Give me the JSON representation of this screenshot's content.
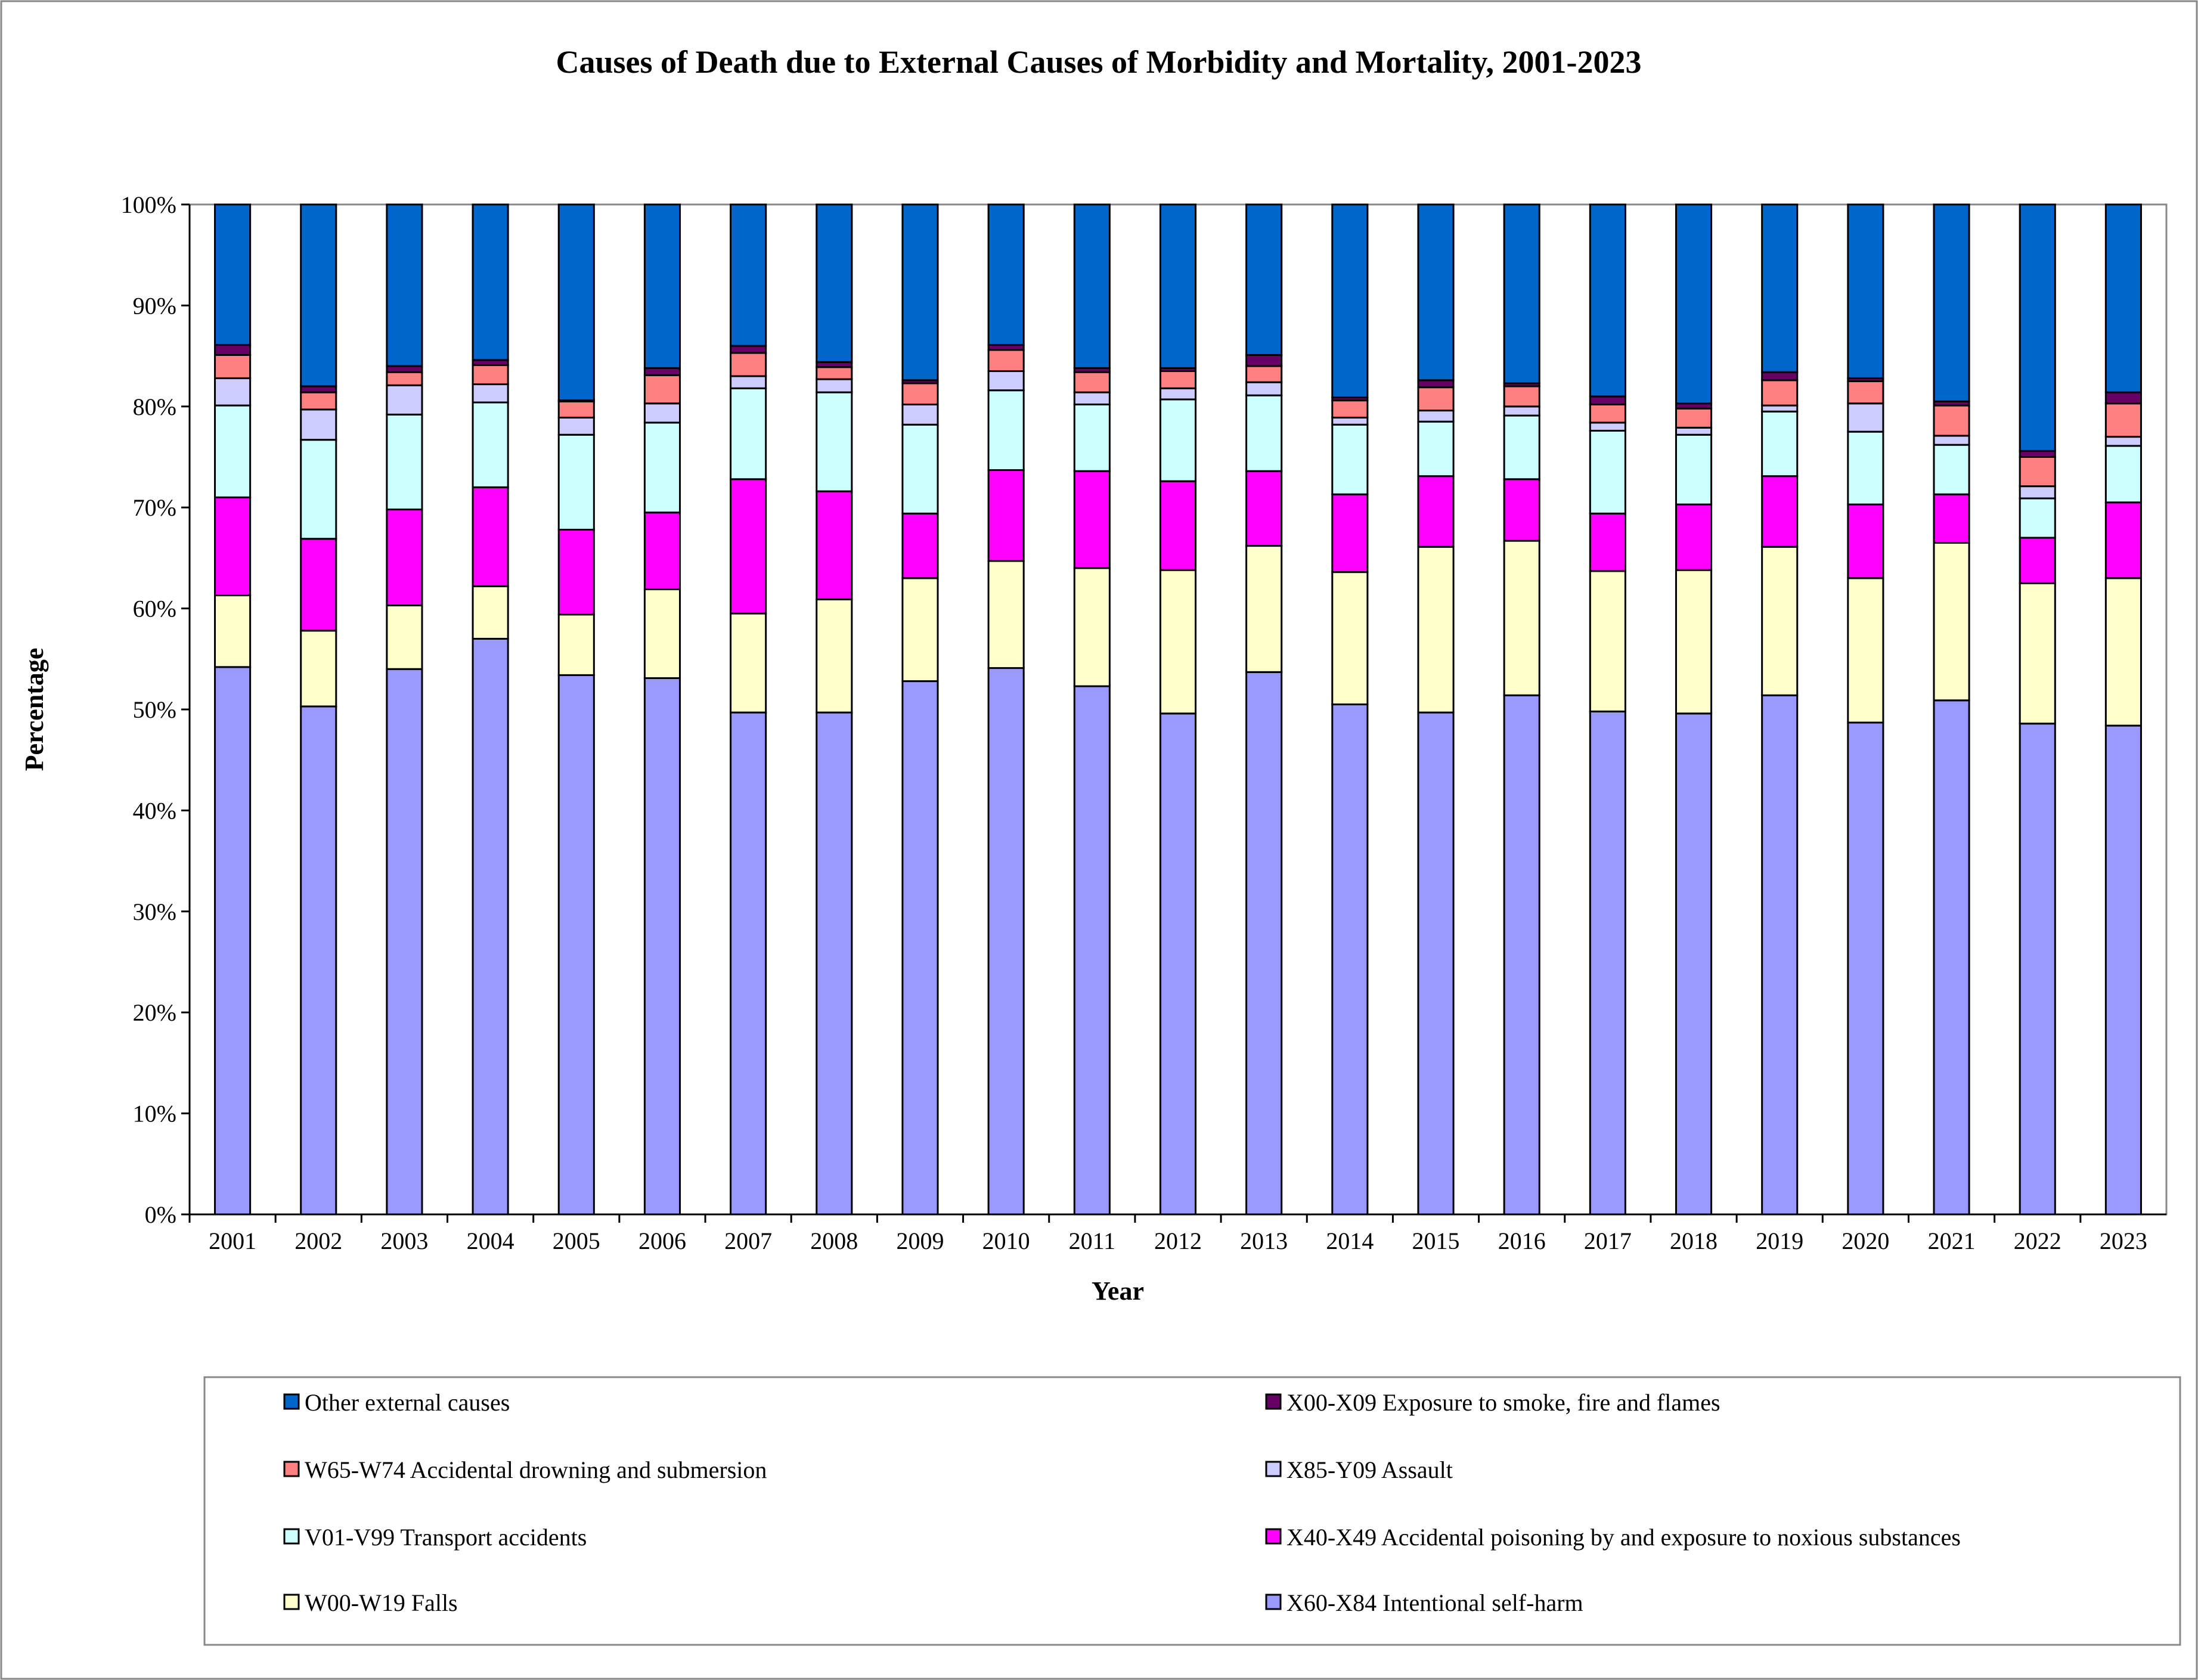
{
  "chart_data": {
    "type": "bar",
    "stacked": "percent",
    "title": "Causes of Death due to External Causes of Morbidity and Mortality, 2001-2023",
    "xlabel": "Year",
    "ylabel": "Percentage",
    "ylim": [
      0,
      100
    ],
    "yticks": [
      "0%",
      "10%",
      "20%",
      "30%",
      "40%",
      "50%",
      "60%",
      "70%",
      "80%",
      "90%",
      "100%"
    ],
    "grid": false,
    "legend_placement": "bottom",
    "categories": [
      "2001",
      "2002",
      "2003",
      "2004",
      "2005",
      "2006",
      "2007",
      "2008",
      "2009",
      "2010",
      "2011",
      "2012",
      "2013",
      "2014",
      "2015",
      "2016",
      "2017",
      "2018",
      "2019",
      "2020",
      "2021",
      "2022",
      "2023"
    ],
    "series": [
      {
        "name": "X60-X84 Intentional self-harm",
        "color": "#9999FF",
        "values": [
          54.2,
          50.3,
          54.0,
          57.0,
          53.4,
          53.1,
          49.7,
          49.7,
          52.8,
          54.1,
          52.3,
          49.6,
          53.7,
          50.5,
          49.7,
          51.4,
          49.8,
          49.6,
          51.4,
          48.7,
          50.9,
          48.6,
          48.4
        ]
      },
      {
        "name": "W00-W19 Falls",
        "color": "#FFFFCC",
        "values": [
          7.1,
          7.5,
          6.3,
          5.2,
          6.0,
          8.8,
          9.8,
          11.2,
          10.2,
          10.6,
          11.7,
          14.2,
          12.5,
          13.1,
          16.4,
          15.3,
          13.9,
          14.2,
          14.7,
          14.3,
          15.6,
          13.9,
          14.6
        ]
      },
      {
        "name": "X40-X49 Accidental poisoning by and exposure to noxious substances",
        "color": "#FF00FF",
        "values": [
          9.7,
          9.1,
          9.5,
          9.8,
          8.4,
          7.6,
          13.3,
          10.7,
          6.4,
          9.0,
          9.6,
          8.8,
          7.4,
          7.7,
          7.0,
          6.1,
          5.7,
          6.5,
          7.0,
          7.3,
          4.8,
          4.5,
          7.5
        ]
      },
      {
        "name": "V01-V99 Transport accidents",
        "color": "#CCFFFF",
        "values": [
          9.1,
          9.8,
          9.4,
          8.4,
          9.4,
          8.9,
          9.0,
          9.8,
          8.8,
          7.9,
          6.6,
          8.1,
          7.5,
          6.9,
          5.4,
          6.3,
          8.2,
          6.9,
          6.4,
          7.2,
          4.9,
          3.9,
          5.6
        ]
      },
      {
        "name": "X85-Y09 Assault",
        "color": "#CCCCFF",
        "values": [
          2.7,
          3.0,
          2.9,
          1.8,
          1.7,
          1.9,
          1.2,
          1.3,
          2.0,
          1.9,
          1.2,
          1.1,
          1.3,
          0.7,
          1.1,
          0.9,
          0.8,
          0.7,
          0.6,
          2.8,
          0.9,
          1.2,
          0.9
        ]
      },
      {
        "name": "W65-W74 Accidental drowning and submersion",
        "color": "#FF8080",
        "values": [
          2.3,
          1.7,
          1.3,
          1.9,
          1.6,
          2.8,
          2.3,
          1.2,
          2.1,
          2.1,
          2.0,
          1.7,
          1.6,
          1.7,
          2.3,
          2.0,
          1.8,
          1.9,
          2.5,
          2.2,
          3.0,
          2.9,
          3.3
        ]
      },
      {
        "name": "X00-X09 Exposure to smoke, fire and flames",
        "color": "#660066",
        "values": [
          1.0,
          0.6,
          0.6,
          0.5,
          0.1,
          0.7,
          0.7,
          0.5,
          0.3,
          0.5,
          0.4,
          0.3,
          1.1,
          0.3,
          0.7,
          0.3,
          0.8,
          0.5,
          0.8,
          0.3,
          0.4,
          0.6,
          1.1
        ]
      },
      {
        "name": "Other external causes",
        "color": "#0066CC",
        "values": [
          13.9,
          18.0,
          16.0,
          15.4,
          19.4,
          16.2,
          14.0,
          15.6,
          17.4,
          13.9,
          16.2,
          16.2,
          14.9,
          19.1,
          17.4,
          17.7,
          19.0,
          19.7,
          16.6,
          17.2,
          19.5,
          24.4,
          18.6
        ]
      }
    ],
    "legend_order": [
      7,
      6,
      5,
      4,
      3,
      2,
      1,
      0
    ]
  }
}
